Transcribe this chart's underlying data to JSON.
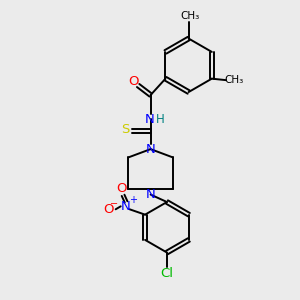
{
  "bg_color": "#ebebeb",
  "bond_color": "#000000",
  "colors": {
    "O": "#ff0000",
    "N": "#0000ff",
    "S": "#cccc00",
    "Cl": "#00bb00",
    "H": "#008080",
    "C": "#000000"
  }
}
